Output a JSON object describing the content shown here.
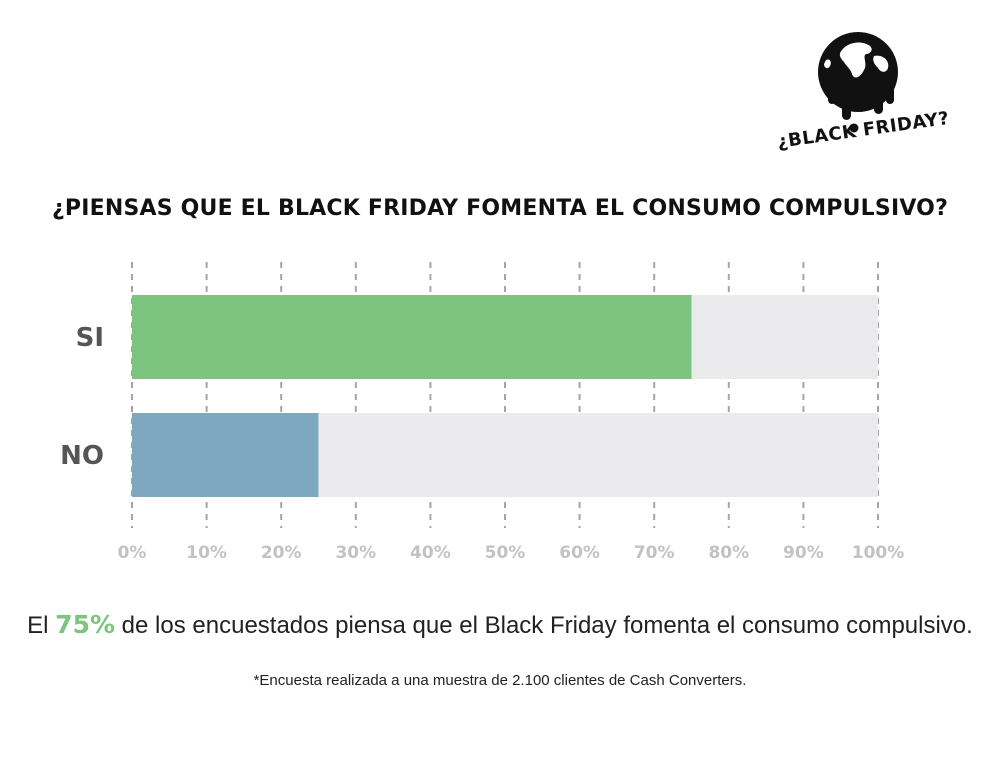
{
  "logo": {
    "text": "¿BLACK FRIDAY?",
    "icon": "melting-globe-icon"
  },
  "headline": "¿PIENSAS QUE EL BLACK FRIDAY FOMENTA EL CONSUMO COMPULSIVO?",
  "chart_data": {
    "type": "bar",
    "orientation": "horizontal",
    "stacked_background": true,
    "categories": [
      "SI",
      "NO"
    ],
    "values": [
      75,
      25
    ],
    "colors": [
      "#7cc47f",
      "#7ea8bf"
    ],
    "track_color": "#ebebed",
    "xlim": [
      0,
      100
    ],
    "ticks": [
      0,
      10,
      20,
      30,
      40,
      50,
      60,
      70,
      80,
      90,
      100
    ],
    "tick_labels": [
      "0%",
      "10%",
      "20%",
      "30%",
      "40%",
      "50%",
      "60%",
      "70%",
      "80%",
      "90%",
      "100%"
    ],
    "grid": "dashed-vertical",
    "legend": "none",
    "title": "",
    "xlabel": "",
    "ylabel": ""
  },
  "summary": {
    "prefix": "El ",
    "highlight": "75%",
    "suffix": " de los encuestados piensa que el Black Friday fomenta el consumo compulsivo."
  },
  "footnote": "*Encuesta realizada a una muestra de 2.100 clientes de Cash Converters."
}
